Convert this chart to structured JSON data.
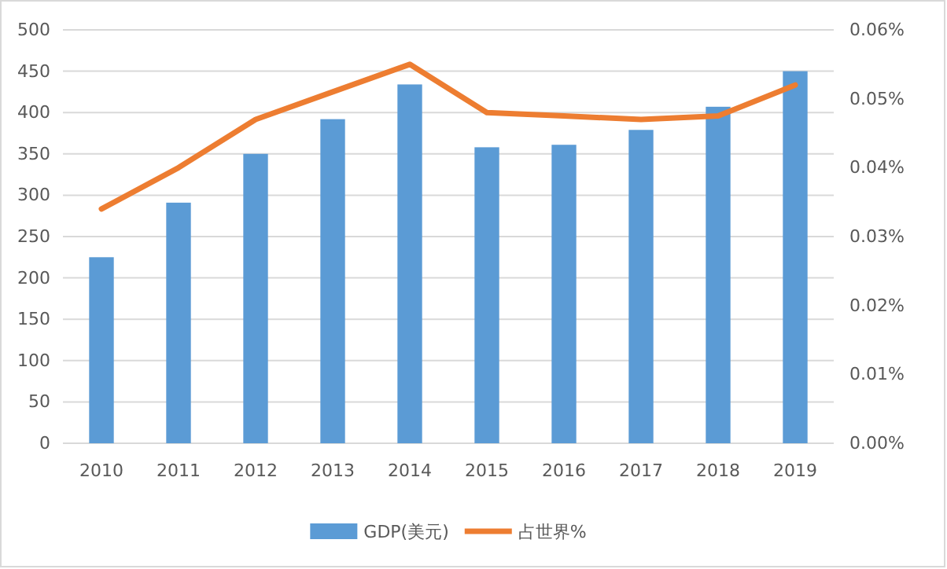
{
  "chart_data": {
    "type": "bar",
    "categories": [
      "2010",
      "2011",
      "2012",
      "2013",
      "2014",
      "2015",
      "2016",
      "2017",
      "2018",
      "2019"
    ],
    "series": [
      {
        "name": "GDP(美元)",
        "color": "#5b9bd5",
        "values": [
          225,
          291,
          350,
          392,
          434,
          358,
          361,
          379,
          407,
          450
        ]
      },
      {
        "name": "占世界%",
        "type": "line",
        "axis": "y2",
        "color": "#ed7d31",
        "values": [
          0.034,
          0.04,
          0.047,
          0.051,
          0.055,
          0.048,
          0.0475,
          0.047,
          0.0475,
          0.052
        ]
      }
    ],
    "ylim": [
      0,
      500
    ],
    "yticks": [
      0,
      50,
      100,
      150,
      200,
      250,
      300,
      350,
      400,
      450,
      500
    ],
    "y2lim": [
      0,
      0.06
    ],
    "y2ticks": [
      {
        "value": 0,
        "label": "0.00%"
      },
      {
        "value": 0.01,
        "label": "0.01%"
      },
      {
        "value": 0.02,
        "label": "0.02%"
      },
      {
        "value": 0.03,
        "label": "0.03%"
      },
      {
        "value": 0.04,
        "label": "0.04%"
      },
      {
        "value": 0.05,
        "label": "0.05%"
      },
      {
        "value": 0.06,
        "label": "0.06%"
      }
    ],
    "grid": "y",
    "legend": "bottom",
    "marker": "none",
    "line_style": "solid"
  }
}
